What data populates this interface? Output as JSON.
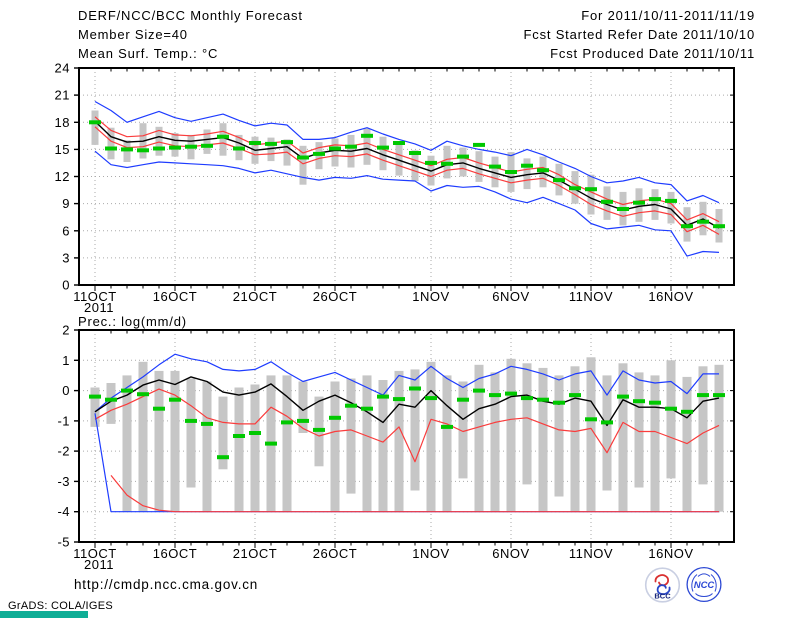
{
  "header": {
    "title": "DERF/NCC/BCC Monthly Forecast",
    "member_size": "Member Size=40",
    "for_range": "For 2011/10/11-2011/11/19",
    "fcst_started": "Fcst Started Refer Date 2011/10/10",
    "fcst_produced": "Fcst Produced Date 2011/10/11"
  },
  "footer": {
    "url": "http://cmdp.ncc.cma.gov.cn",
    "grads_credit": "GrADS: COLA/IGES",
    "logos": [
      {
        "name": "bcc-logo",
        "label": "BCC"
      },
      {
        "name": "ncc-logo",
        "label": "NCC"
      }
    ]
  },
  "colors": {
    "ensemble_max_min": "#1e3cff",
    "quartile": "#fa3c3c",
    "ensemble_mean": "#000000",
    "observation": "#00c800",
    "spread_bar": "#c6c6c6",
    "grid": "#aaaaaa",
    "grads_bar": "#0fae96"
  },
  "chart_data": [
    {
      "type": "line",
      "title": "Mean Surf. Temp.: °C",
      "ylabel": "Mean surface temperature (°C)",
      "ylim": [
        0,
        24
      ],
      "yticks": [
        0,
        3,
        6,
        9,
        12,
        15,
        18,
        21,
        24
      ],
      "x_tick_days": [
        0,
        5,
        10,
        15,
        21,
        26,
        31,
        36
      ],
      "x_tick_labels": [
        "11OCT",
        "16OCT",
        "21OCT",
        "26OCT",
        "1NOV",
        "6NOV",
        "11NOV",
        "16NOV"
      ],
      "year_label": "2011",
      "n_days": 40,
      "series": [
        {
          "name": "ensemble-max",
          "color": "blue",
          "values": [
            20.3,
            19.3,
            18.0,
            18.6,
            19.2,
            18.5,
            18.1,
            18.5,
            18.9,
            18.2,
            17.6,
            17.9,
            17.7,
            16.1,
            16.1,
            16.3,
            16.9,
            17.4,
            16.7,
            16.1,
            15.6,
            14.9,
            15.9,
            15.4,
            15.0,
            14.7,
            14.3,
            15.0,
            14.4,
            13.6,
            12.9,
            12.0,
            11.3,
            11.5,
            11.9,
            11.3,
            11.1,
            9.3,
            9.9,
            9.1
          ]
        },
        {
          "name": "upper-spread",
          "color": "red",
          "values": [
            18.6,
            17.1,
            16.4,
            16.5,
            17.1,
            16.6,
            16.5,
            16.7,
            17.0,
            16.3,
            15.5,
            15.7,
            15.9,
            14.6,
            15.2,
            15.5,
            15.4,
            15.7,
            15.0,
            14.4,
            13.8,
            13.2,
            13.9,
            14.1,
            13.5,
            13.0,
            12.5,
            12.8,
            13.0,
            12.2,
            11.1,
            10.3,
            9.5,
            8.9,
            9.3,
            9.5,
            9.0,
            7.2,
            7.9,
            7.0
          ]
        },
        {
          "name": "ensemble-mean",
          "color": "black",
          "values": [
            18.1,
            16.4,
            15.8,
            15.9,
            16.4,
            16.0,
            15.9,
            16.1,
            16.3,
            15.7,
            14.9,
            15.1,
            15.3,
            14.0,
            14.6,
            14.9,
            14.8,
            15.1,
            14.4,
            13.8,
            13.2,
            12.6,
            13.3,
            13.5,
            12.9,
            12.4,
            11.9,
            12.2,
            12.4,
            11.6,
            10.6,
            9.6,
            8.9,
            8.3,
            8.7,
            8.9,
            8.4,
            6.6,
            7.3,
            6.3
          ]
        },
        {
          "name": "lower-spread",
          "color": "red",
          "values": [
            17.5,
            15.9,
            15.2,
            15.3,
            15.8,
            15.4,
            15.3,
            15.5,
            15.7,
            15.1,
            14.4,
            14.5,
            14.7,
            13.4,
            14.0,
            14.3,
            14.2,
            14.5,
            13.8,
            13.2,
            12.6,
            12.0,
            12.7,
            12.9,
            12.3,
            11.8,
            11.3,
            11.6,
            11.8,
            11.0,
            10.0,
            8.9,
            8.2,
            7.6,
            8.0,
            8.2,
            7.8,
            5.9,
            6.6,
            5.6
          ]
        },
        {
          "name": "ensemble-min",
          "color": "blue",
          "values": [
            14.8,
            13.3,
            13.0,
            13.3,
            13.6,
            13.5,
            13.4,
            13.3,
            13.2,
            12.9,
            12.4,
            12.7,
            12.3,
            11.9,
            11.6,
            11.9,
            11.8,
            12.1,
            11.7,
            11.6,
            11.5,
            10.4,
            11.0,
            10.8,
            10.9,
            10.3,
            9.5,
            9.1,
            9.7,
            9.0,
            8.3,
            6.8,
            6.2,
            6.4,
            6.6,
            6.1,
            6.0,
            3.2,
            3.7,
            3.6
          ]
        },
        {
          "name": "observation-dashes",
          "color": "green",
          "style": "dash",
          "values": [
            18.0,
            15.1,
            15.0,
            14.9,
            15.1,
            15.2,
            15.3,
            15.4,
            16.4,
            15.1,
            15.7,
            15.6,
            15.8,
            14.1,
            14.5,
            15.1,
            15.3,
            16.5,
            15.2,
            15.7,
            14.6,
            13.5,
            13.4,
            14.2,
            15.5,
            13.1,
            12.5,
            13.2,
            12.7,
            11.6,
            10.7,
            10.6,
            9.2,
            8.4,
            9.1,
            9.5,
            9.3,
            6.5,
            7.0,
            6.5
          ]
        }
      ],
      "range_bars": {
        "lo": [
          15.5,
          13.9,
          13.6,
          14.0,
          14.3,
          14.2,
          13.9,
          14.5,
          14.3,
          13.8,
          13.4,
          13.7,
          13.2,
          11.1,
          12.8,
          13.1,
          13.0,
          13.3,
          12.7,
          12.1,
          11.5,
          11.0,
          11.8,
          12.0,
          11.4,
          10.8,
          10.3,
          10.6,
          10.8,
          9.9,
          9.0,
          7.8,
          7.2,
          6.6,
          7.0,
          7.2,
          6.8,
          4.8,
          5.5,
          4.7
        ],
        "hi": [
          19.3,
          17.4,
          16.0,
          17.9,
          17.5,
          16.8,
          16.6,
          17.2,
          17.9,
          16.6,
          16.4,
          16.3,
          16.1,
          15.4,
          15.8,
          16.2,
          16.6,
          17.3,
          16.4,
          15.5,
          14.9,
          14.3,
          15.4,
          15.2,
          14.8,
          14.2,
          14.7,
          14.0,
          14.2,
          13.4,
          12.6,
          12.2,
          10.9,
          10.3,
          10.7,
          10.6,
          10.3,
          8.6,
          9.2,
          8.4
        ]
      }
    },
    {
      "type": "line",
      "title": "Prec.: log(mm/d)",
      "ylabel": "Precipitation log(mm/d)",
      "ylim": [
        -5,
        2
      ],
      "yticks": [
        -5,
        -4,
        -3,
        -2,
        -1,
        0,
        1,
        2
      ],
      "x_tick_days": [
        0,
        5,
        10,
        15,
        21,
        26,
        31,
        36
      ],
      "x_tick_labels": [
        "11OCT",
        "16OCT",
        "21OCT",
        "26OCT",
        "1NOV",
        "6NOV",
        "11NOV",
        "16NOV"
      ],
      "year_label": "2011",
      "n_days": 40,
      "series": [
        {
          "name": "ensemble-max",
          "color": "blue",
          "values": [
            -0.7,
            -0.25,
            0.1,
            0.45,
            0.85,
            1.2,
            1.05,
            0.95,
            0.7,
            0.65,
            0.7,
            0.95,
            0.6,
            0.3,
            0.45,
            0.6,
            0.35,
            0.1,
            -0.15,
            0.5,
            0.35,
            0.8,
            0.4,
            0.1,
            0.4,
            0.55,
            0.8,
            0.7,
            0.55,
            0.35,
            0.55,
            0.65,
            -0.15,
            0.65,
            0.35,
            0.25,
            0.3,
            -0.1,
            0.55,
            0.55
          ]
        },
        {
          "name": "ensemble-mean",
          "color": "black",
          "values": [
            -0.7,
            -0.35,
            -0.15,
            0.18,
            0.35,
            0.2,
            0.45,
            0.3,
            -0.05,
            -0.15,
            -0.05,
            0.22,
            -0.2,
            -0.65,
            -0.35,
            -0.15,
            -0.4,
            -0.7,
            -1.05,
            -0.45,
            -0.55,
            0.0,
            -0.5,
            -0.95,
            -0.6,
            -0.45,
            -0.2,
            -0.15,
            -0.35,
            -0.45,
            -0.25,
            -0.35,
            -1.15,
            -0.3,
            -0.55,
            -0.55,
            -0.6,
            -0.9,
            -0.35,
            -0.25
          ]
        },
        {
          "name": "lower-quartile",
          "color": "red",
          "values": [
            -0.95,
            -0.65,
            -0.45,
            -0.2,
            0.05,
            -0.15,
            -0.5,
            -0.9,
            -1.05,
            -1.1,
            -1.1,
            -0.55,
            -0.85,
            -1.25,
            -1.5,
            -1.35,
            -1.3,
            -1.5,
            -1.7,
            -1.2,
            -2.35,
            -0.95,
            -1.1,
            -1.35,
            -1.2,
            -1.05,
            -0.95,
            -0.9,
            -1.1,
            -1.3,
            -1.35,
            -1.25,
            -2.05,
            -1.05,
            -1.35,
            -1.35,
            -1.55,
            -1.75,
            -1.4,
            -1.15
          ]
        },
        {
          "name": "ensemble-min",
          "color": "blue",
          "values": [
            -0.75,
            -4,
            -4,
            -4,
            -4,
            -4,
            -4,
            -4,
            -4,
            -4,
            -4,
            -4,
            -4,
            -4,
            -4,
            -4,
            -4,
            -4,
            -4,
            -4,
            -4,
            -4,
            -4,
            -4,
            -4,
            -4,
            -4,
            -4,
            -4,
            -4,
            -4,
            -4,
            -4,
            -4,
            -4,
            -4,
            -4,
            -4,
            -4,
            -4
          ]
        },
        {
          "name": "lower-envelope",
          "color": "red",
          "values": [
            null,
            -2.8,
            -3.45,
            -3.8,
            -3.95,
            -4,
            -4,
            -4,
            -4,
            -4,
            -4,
            -4,
            -4,
            -4,
            -4,
            -4,
            -4,
            -4,
            -4,
            -4,
            -4,
            -4,
            -4,
            -4,
            -4,
            -4,
            -4,
            -4,
            -4,
            -4,
            -4,
            -4,
            -4,
            -4,
            -4,
            -4,
            -4,
            -4,
            -4,
            -4
          ]
        },
        {
          "name": "observation-dashes",
          "color": "green",
          "style": "dash",
          "values": [
            -0.2,
            -0.3,
            0.0,
            -0.12,
            -0.6,
            -0.3,
            -1.0,
            -1.1,
            -2.2,
            -1.5,
            -1.4,
            -1.75,
            -1.05,
            -1.0,
            -1.3,
            -0.9,
            -0.5,
            -0.6,
            -0.2,
            -0.28,
            0.07,
            -0.25,
            -1.2,
            -0.3,
            0.0,
            -0.15,
            -0.1,
            -0.25,
            -0.3,
            -0.4,
            -0.15,
            -0.95,
            -1.05,
            -0.2,
            -0.35,
            -0.4,
            -0.6,
            -0.7,
            -0.15,
            -0.15
          ]
        }
      ],
      "range_bars": {
        "lo": [
          -1.2,
          -1.1,
          -4,
          -4,
          -4,
          -4,
          -3.2,
          -4,
          -2.6,
          -4,
          -4,
          -4,
          -4,
          -1.4,
          -2.5,
          -4,
          -3.4,
          -4,
          -4,
          -4,
          -3.3,
          -4,
          -4,
          -2.9,
          -4,
          -4,
          -4,
          -3.1,
          -4,
          -3.5,
          -4,
          -4,
          -3.3,
          -4,
          -3.2,
          -4,
          -2.9,
          -4,
          -3.1,
          -4
        ],
        "hi": [
          0.1,
          0.25,
          0.5,
          0.95,
          0.65,
          0.65,
          0.4,
          0.3,
          -0.2,
          0.1,
          0.2,
          0.5,
          0.5,
          0.3,
          -0.2,
          0.3,
          0.4,
          0.5,
          0.35,
          0.65,
          0.7,
          0.95,
          0.5,
          0.3,
          0.85,
          0.6,
          1.05,
          0.9,
          0.75,
          0.5,
          0.8,
          1.1,
          0.5,
          0.9,
          0.6,
          0.5,
          1.0,
          0.45,
          0.8,
          0.85
        ]
      }
    }
  ]
}
